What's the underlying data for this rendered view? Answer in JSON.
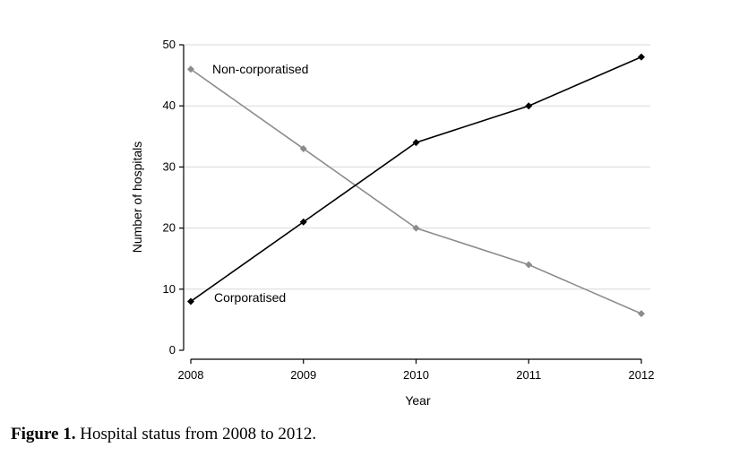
{
  "chart_data": {
    "type": "line",
    "x": [
      2008,
      2009,
      2010,
      2011,
      2012
    ],
    "series": [
      {
        "name": "Non-corporatised",
        "values": [
          46,
          33,
          20,
          14,
          6
        ],
        "color": "#8c8c8c"
      },
      {
        "name": "Corporatised",
        "values": [
          8,
          21,
          34,
          40,
          48
        ],
        "color": "#000000"
      }
    ],
    "xlabel": "Year",
    "ylabel": "Number of hospitals",
    "ylim": [
      0,
      50
    ],
    "yticks": [
      0,
      10,
      20,
      30,
      40,
      50
    ],
    "xticks": [
      "2008",
      "2009",
      "2010",
      "2011",
      "2012"
    ],
    "grid": "horizontal",
    "gridColor": "#d9d9d9"
  },
  "caption": {
    "label": "Figure 1.",
    "text": " Hospital status from 2008 to 2012."
  }
}
